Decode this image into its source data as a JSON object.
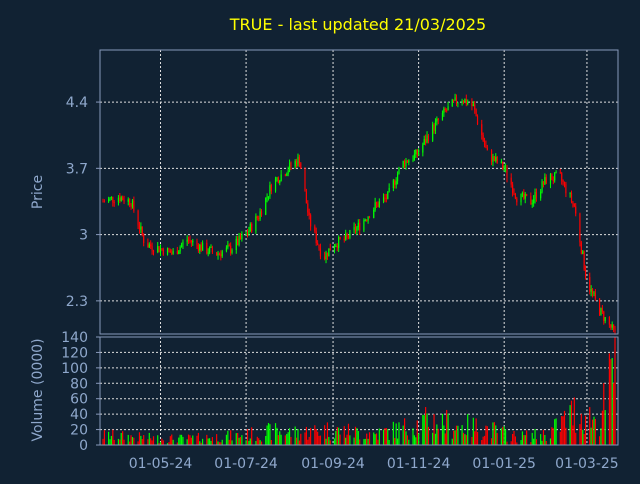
{
  "chart_data": {
    "type": "candlestick",
    "title": "TRUE - last updated 21/03/2025",
    "price_panel": {
      "ylabel": "Price",
      "ylim": [
        1.95,
        4.95
      ],
      "yticks": [
        2.3,
        3,
        3.7,
        4.4
      ],
      "ytick_labels": [
        "2.3",
        "3",
        "3.7",
        "4.4"
      ],
      "grid": true
    },
    "volume_panel": {
      "ylabel": "Volume (0000)",
      "ylim": [
        0,
        140
      ],
      "yticks": [
        0,
        20,
        40,
        60,
        80,
        100,
        120,
        140
      ],
      "ytick_labels": [
        "0",
        "20",
        "40",
        "60",
        "80",
        "100",
        "120",
        "140"
      ],
      "grid": true
    },
    "x_ticks": [
      "01-05-24",
      "01-07-24",
      "01-09-24",
      "01-11-24",
      "01-01-25",
      "01-03-25"
    ],
    "series": [
      {
        "kind": "close",
        "x": [
          "2024-03-21",
          "2024-04-01",
          "2024-04-10",
          "2024-04-20",
          "2024-05-01",
          "2024-05-10",
          "2024-05-20",
          "2024-06-01",
          "2024-06-10",
          "2024-06-20",
          "2024-07-01",
          "2024-07-10",
          "2024-07-20",
          "2024-07-31",
          "2024-08-08",
          "2024-08-15",
          "2024-08-25",
          "2024-09-01",
          "2024-09-10",
          "2024-09-20",
          "2024-10-01",
          "2024-10-10",
          "2024-10-20",
          "2024-10-31",
          "2024-11-10",
          "2024-11-20",
          "2024-12-01",
          "2024-12-10",
          "2024-12-20",
          "2025-01-01",
          "2025-01-10",
          "2025-01-20",
          "2025-02-01",
          "2025-02-10",
          "2025-02-20",
          "2025-03-01",
          "2025-03-10",
          "2025-03-21"
        ],
        "y": [
          3.35,
          3.4,
          3.35,
          2.9,
          2.85,
          2.8,
          2.95,
          2.85,
          2.8,
          2.85,
          3.0,
          3.2,
          3.55,
          3.7,
          3.8,
          3.15,
          2.75,
          2.9,
          2.95,
          3.1,
          3.3,
          3.4,
          3.75,
          3.85,
          4.1,
          4.3,
          4.45,
          4.35,
          3.85,
          3.7,
          3.4,
          3.35,
          3.6,
          3.6,
          3.3,
          2.5,
          2.2,
          1.95
        ]
      },
      {
        "kind": "volume",
        "x": [
          "2024-03-21",
          "2024-04-10",
          "2024-05-01",
          "2024-05-20",
          "2024-06-10",
          "2024-07-01",
          "2024-07-20",
          "2024-08-08",
          "2024-08-25",
          "2024-09-10",
          "2024-10-01",
          "2024-10-20",
          "2024-11-10",
          "2024-12-01",
          "2024-12-20",
          "2025-01-10",
          "2025-02-01",
          "2025-02-20",
          "2025-03-10",
          "2025-03-21"
        ],
        "y": [
          18,
          15,
          12,
          12,
          15,
          18,
          25,
          22,
          28,
          25,
          20,
          30,
          45,
          35,
          30,
          15,
          20,
          60,
          45,
          140
        ]
      }
    ]
  }
}
